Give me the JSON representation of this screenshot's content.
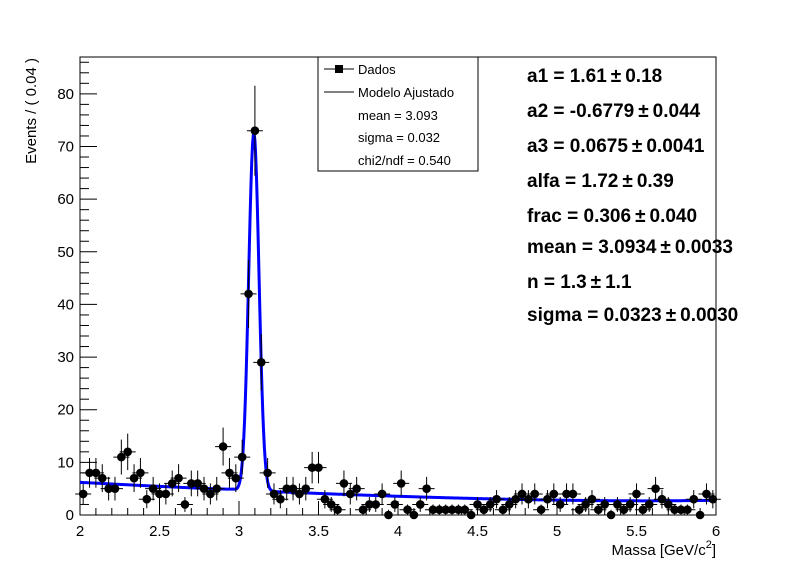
{
  "chart_data": {
    "type": "scatter",
    "xlabel": "Massa [GeV/c",
    "xlabel_sup": "2",
    "xlabel_end": "]",
    "ylabel": "Events / ( 0.04 )",
    "xlim": [
      2,
      6
    ],
    "ylim": [
      0,
      87
    ],
    "x_ticks": [
      "2",
      "2.5",
      "3",
      "3.5",
      "4",
      "4.5",
      "5",
      "5.5",
      "6"
    ],
    "y_ticks": [
      "0",
      "10",
      "20",
      "30",
      "40",
      "50",
      "60",
      "70",
      "80"
    ],
    "grid": false,
    "colors": {
      "data": "#000000",
      "fit": "#0000ff"
    },
    "series": [
      {
        "name": "Dados",
        "style": "points-with-error-bars",
        "x": [
          2.02,
          2.06,
          2.1,
          2.14,
          2.18,
          2.22,
          2.26,
          2.3,
          2.34,
          2.38,
          2.42,
          2.46,
          2.5,
          2.54,
          2.58,
          2.62,
          2.66,
          2.7,
          2.74,
          2.78,
          2.82,
          2.86,
          2.9,
          2.94,
          2.98,
          3.02,
          3.06,
          3.1,
          3.14,
          3.18,
          3.22,
          3.26,
          3.3,
          3.34,
          3.38,
          3.42,
          3.46,
          3.5,
          3.54,
          3.58,
          3.62,
          3.66,
          3.7,
          3.74,
          3.78,
          3.82,
          3.86,
          3.9,
          3.94,
          3.98,
          4.02,
          4.06,
          4.1,
          4.14,
          4.18,
          4.22,
          4.26,
          4.3,
          4.34,
          4.38,
          4.42,
          4.46,
          4.5,
          4.54,
          4.58,
          4.62,
          4.66,
          4.7,
          4.74,
          4.78,
          4.82,
          4.86,
          4.9,
          4.94,
          4.98,
          5.02,
          5.06,
          5.1,
          5.14,
          5.18,
          5.22,
          5.26,
          5.3,
          5.34,
          5.38,
          5.42,
          5.46,
          5.5,
          5.54,
          5.58,
          5.62,
          5.66,
          5.7,
          5.74,
          5.78,
          5.82,
          5.86,
          5.9,
          5.94,
          5.98
        ],
        "y": [
          4,
          8,
          8,
          7,
          5,
          5,
          11,
          12,
          7,
          8,
          3,
          5,
          4,
          4,
          6,
          7,
          2,
          6,
          6,
          5,
          4,
          5,
          13,
          8,
          7,
          11,
          42,
          73,
          29,
          8,
          4,
          3,
          5,
          5,
          4,
          5,
          9,
          9,
          3,
          2,
          1,
          6,
          4,
          5,
          1,
          2,
          2,
          4,
          0,
          2,
          6,
          1,
          0,
          2,
          5,
          1,
          1,
          1,
          1,
          1,
          1,
          0,
          2,
          1,
          2,
          3,
          1,
          2,
          3,
          4,
          3,
          4,
          1,
          3,
          4,
          2,
          4,
          4,
          1,
          2,
          3,
          1,
          2,
          0,
          2,
          1,
          2,
          4,
          1,
          2,
          5,
          3,
          2,
          1,
          1,
          1,
          3,
          0,
          4,
          3
        ]
      },
      {
        "name": "Modelo Ajustado",
        "style": "line",
        "model": "crystal-ball peak + 3rd-order polynomial background",
        "params": {
          "mean": 3.0934,
          "sigma": 0.0323,
          "amplitude": 68,
          "bkg_start": 6.2,
          "bkg_end": 2.2,
          "frac": 0.306
        }
      }
    ],
    "legend": {
      "position": "top-center",
      "entries": [
        {
          "label": "Dados",
          "marker": "point"
        },
        {
          "label": "Modelo Ajustado",
          "marker": "line"
        },
        {
          "label": "mean = 3.093",
          "marker": "none"
        },
        {
          "label": "sigma = 0.032",
          "marker": "none"
        },
        {
          "label": "chi2/ndf = 0.540",
          "marker": "none"
        }
      ]
    },
    "param_box": [
      "a1 =  1.61",
      "a2 = -0.6779",
      "a3 =  0.0675",
      "alfa =  1.72",
      "frac =  0.306",
      "mean =  3.0934",
      "n =  1.3",
      "sigma =  0.0323"
    ],
    "param_errors": [
      "0.18",
      "0.044",
      "0.0041",
      "0.39",
      "0.040",
      "0.0033",
      "1.1",
      "0.0030"
    ],
    "pm_symbol": "±"
  }
}
